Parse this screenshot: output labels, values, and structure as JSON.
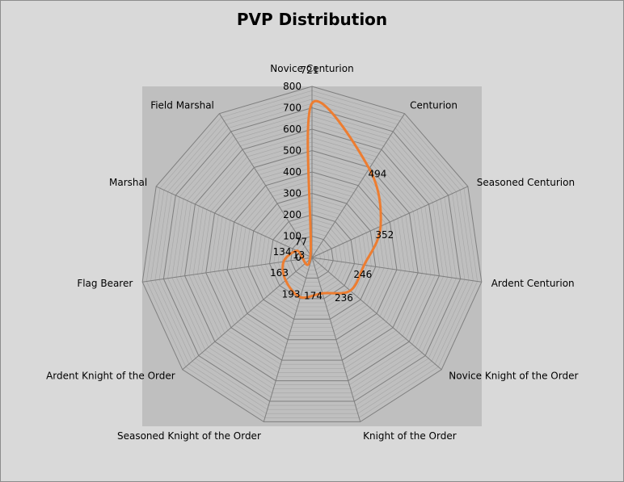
{
  "chart_data": {
    "type": "radar",
    "title": "PVP Distribution",
    "categories": [
      "Novice Centurion",
      "Centurion",
      "Seasoned Centurion",
      "Ardent Centurion",
      "Novice Knight of the Order",
      "Knight of the Order",
      "Seasoned Knight of the Order",
      "Ardent Knight of the Order",
      "Flag Bearer",
      "Marshal",
      "Field Marshal"
    ],
    "series": [
      {
        "values": [
          721,
          494,
          352,
          246,
          236,
          174,
          193,
          163,
          134,
          77,
          13
        ],
        "color": "#ed7d31"
      }
    ],
    "value_labels": [
      "721",
      "494",
      "352",
      "246",
      "236",
      "174",
      "193",
      "163",
      "134",
      "77",
      "13"
    ],
    "ylim": [
      0,
      800
    ],
    "ticks": [
      0,
      100,
      200,
      300,
      400,
      500,
      600,
      700,
      800
    ],
    "tick_labels": [
      "0",
      "100",
      "200",
      "300",
      "400",
      "500",
      "600",
      "700",
      "800"
    ],
    "grid": true,
    "colors": {
      "page_background": "#d9d9d9",
      "plot_background": "#bfbfbf",
      "grid_major": "#7f7f7f",
      "grid_minor": "#a6a6a6",
      "series_line": "#ed7d31"
    }
  }
}
